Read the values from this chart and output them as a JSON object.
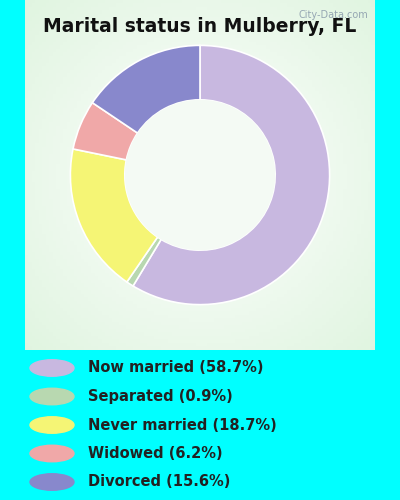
{
  "title": "Marital status in Mulberry, FL",
  "categories": [
    "Now married",
    "Separated",
    "Never married",
    "Widowed",
    "Divorced"
  ],
  "values": [
    58.7,
    0.9,
    18.7,
    6.2,
    15.6
  ],
  "colors": [
    "#c8b8e0",
    "#b8d8b0",
    "#f5f575",
    "#f0a8a8",
    "#8888cc"
  ],
  "legend_labels": [
    "Now married (58.7%)",
    "Separated (0.9%)",
    "Never married (18.7%)",
    "Widowed (6.2%)",
    "Divorced (15.6%)"
  ],
  "legend_colors": [
    "#c8b8e0",
    "#b8d8b0",
    "#f5f575",
    "#f0a8a8",
    "#8888cc"
  ],
  "bg_outer": "#00ffff",
  "chart_bg_edge": "#d0ecd0",
  "chart_bg_center": "#f0f8f0",
  "watermark": "City-Data.com",
  "title_color": "#111111",
  "legend_text_color": "#222222",
  "title_fontsize": 13.5,
  "legend_fontsize": 10.5
}
